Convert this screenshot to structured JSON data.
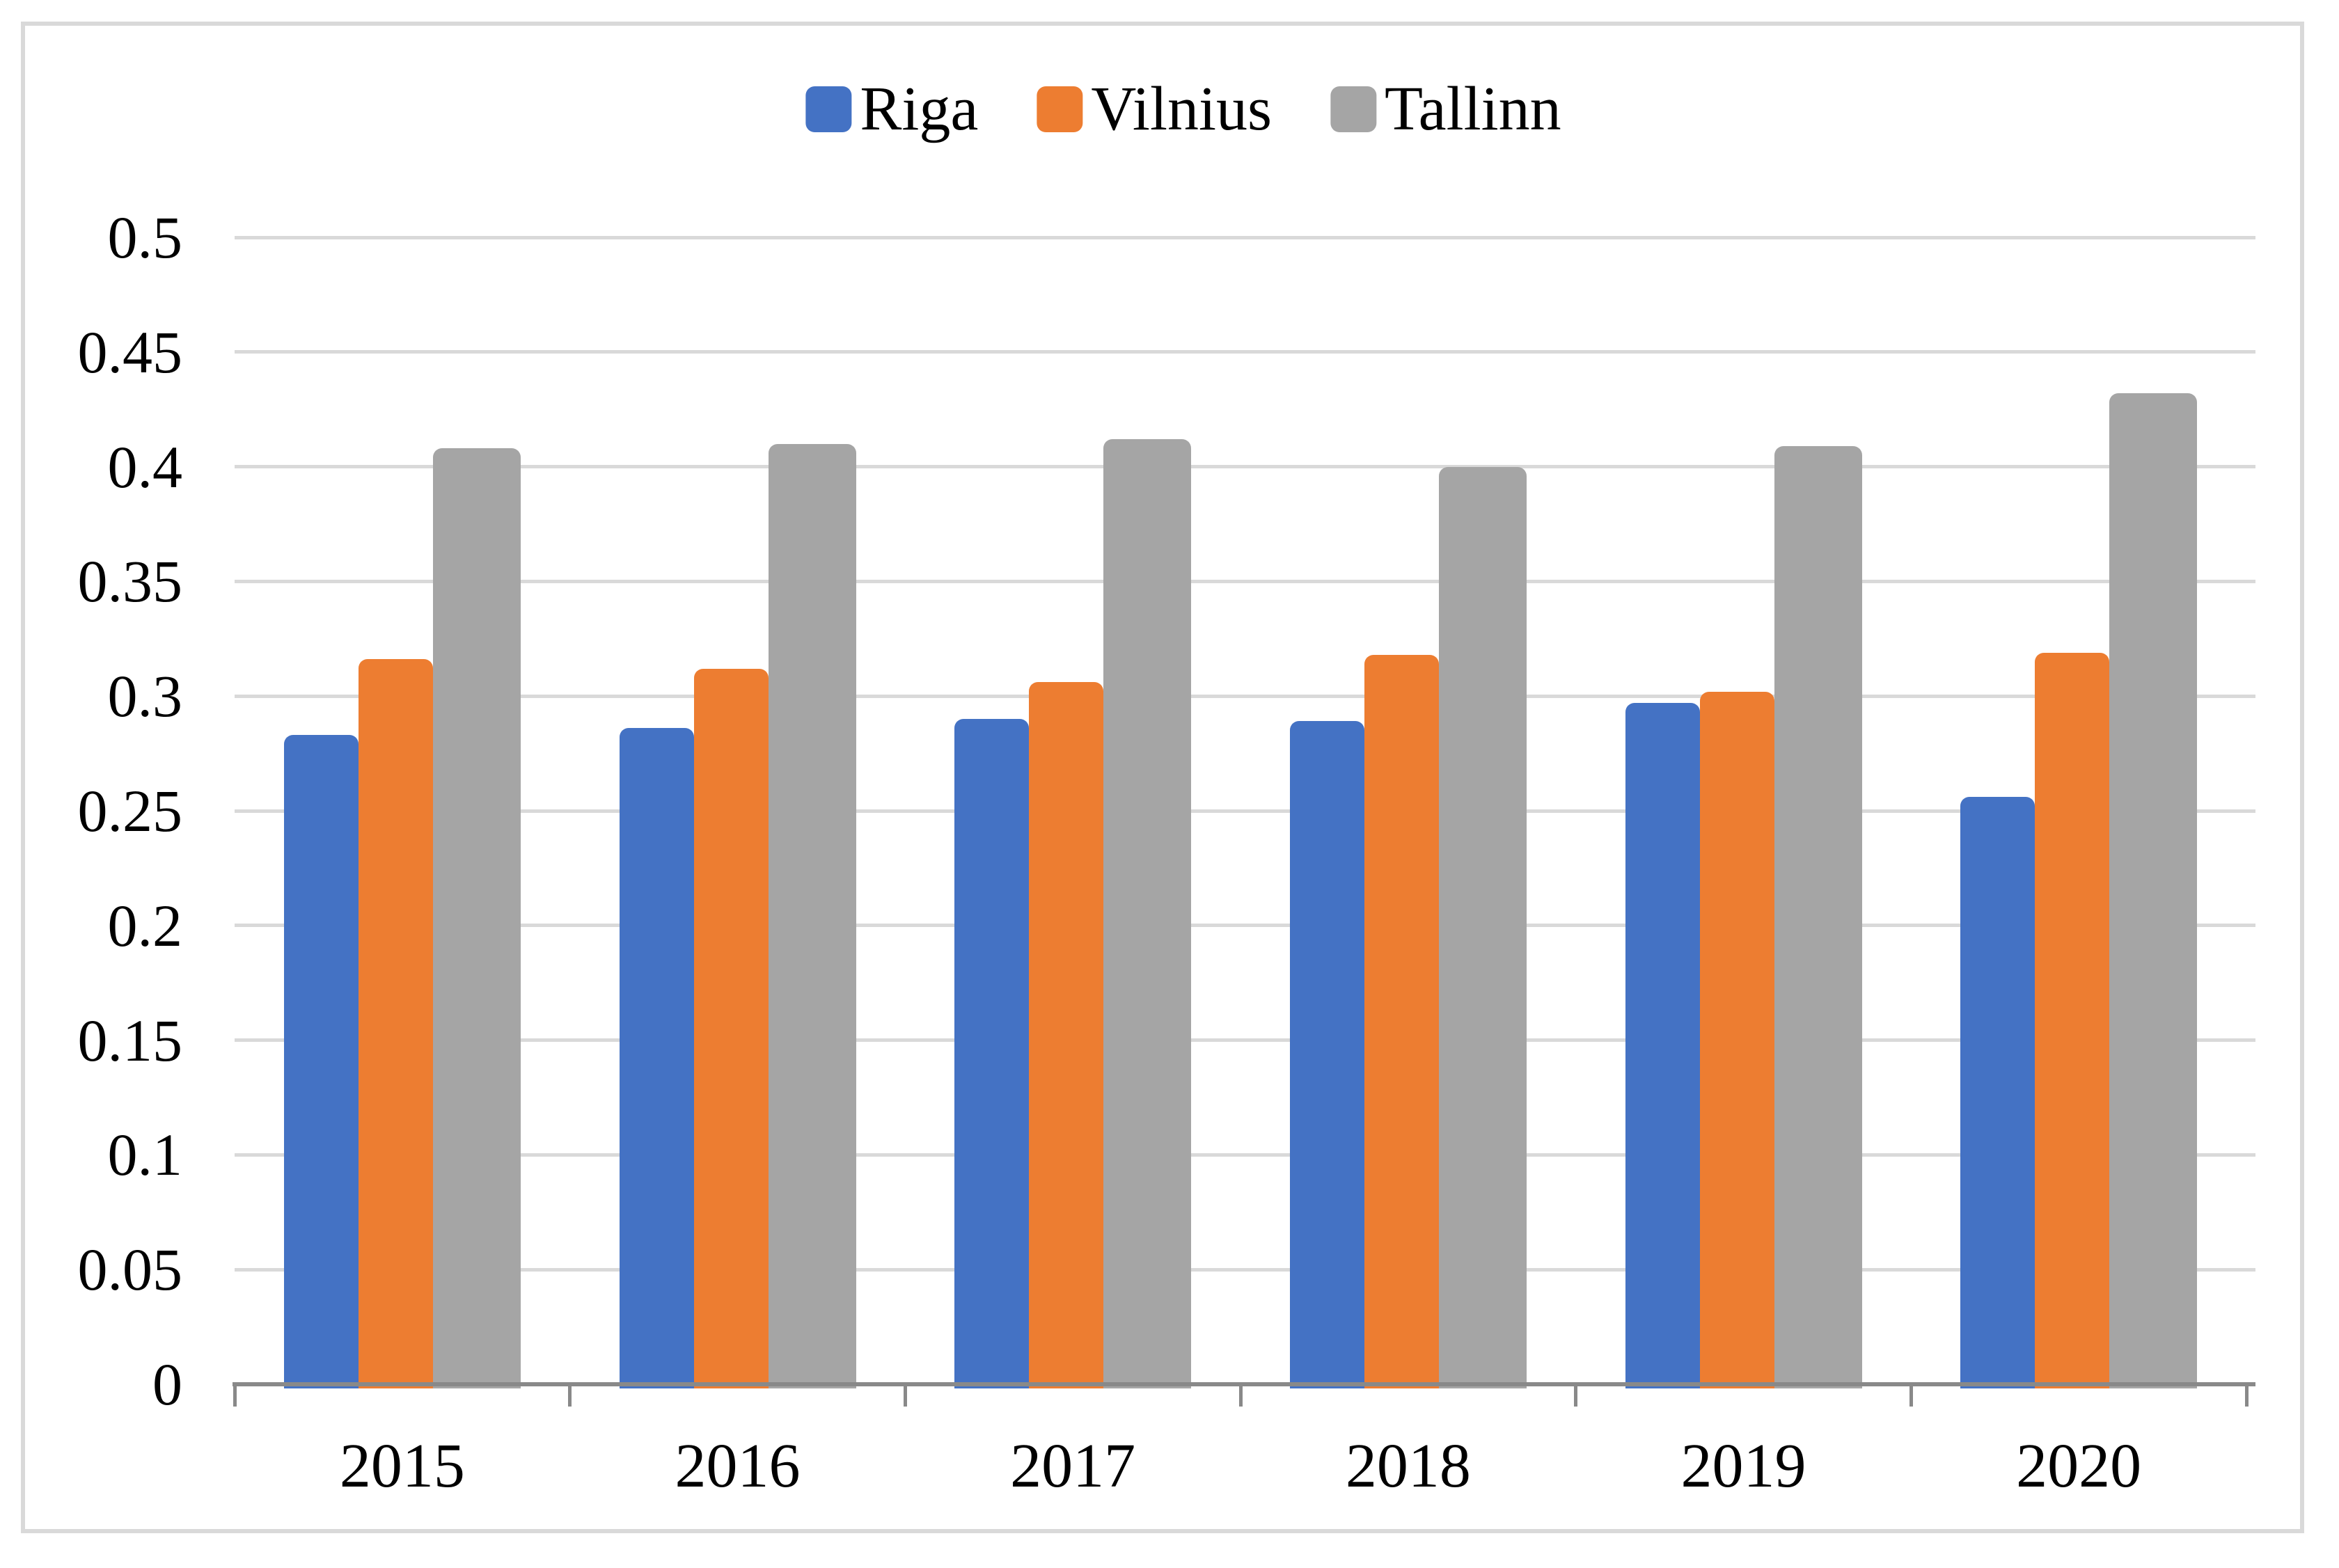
{
  "figure": {
    "background": "#ffffff",
    "border_color": "#D9D9D9"
  },
  "colors": {
    "gridline": "#D9D9D9",
    "axis_line": "#898989",
    "text": "#000000"
  },
  "chart_data": {
    "type": "bar",
    "title": "",
    "xlabel": "",
    "ylabel": "",
    "categories": [
      "2015",
      "2016",
      "2017",
      "2018",
      "2019",
      "2020"
    ],
    "series": [
      {
        "name": "Riga",
        "color": "#4472C4",
        "values": [
          0.283,
          0.286,
          0.29,
          0.289,
          0.297,
          0.256
        ]
      },
      {
        "name": "Vilnius",
        "color": "#ED7D31",
        "values": [
          0.316,
          0.312,
          0.306,
          0.318,
          0.302,
          0.319
        ]
      },
      {
        "name": "Tallinn",
        "color": "#A5A5A5",
        "values": [
          0.408,
          0.41,
          0.412,
          0.4,
          0.409,
          0.432
        ]
      }
    ],
    "ylim": [
      0,
      0.5
    ],
    "ytick_step": 0.05,
    "ytick_labels": [
      "0",
      "0.05",
      "0.1",
      "0.15",
      "0.2",
      "0.25",
      "0.3",
      "0.35",
      "0.4",
      "0.45",
      "0.5"
    ],
    "grid": true,
    "legend_position": "top center"
  }
}
